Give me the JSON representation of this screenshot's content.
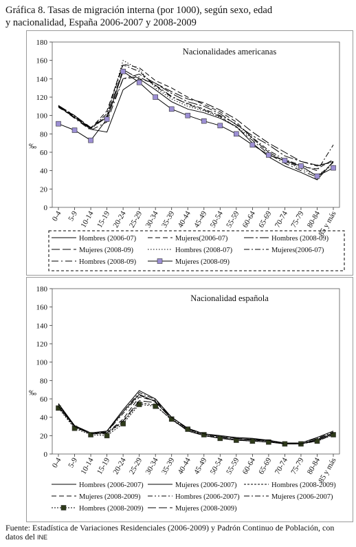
{
  "title_line1": "Gráfica 8. Tasas de migración interna (por 1000), según sexo, edad",
  "title_line2": "y nacionalidad, España 2006-2007 y 2008-2009",
  "source_text": "Fuente: Estadística de Variaciones Residenciales (2006-2009) y Padrón Continuo de Población, con datos del",
  "source_ine": "INE",
  "chart_data": [
    {
      "type": "line",
      "title": "Nacionalidades americanas",
      "ylabel": "‰",
      "ylim": [
        0,
        180
      ],
      "yticks": [
        0,
        20,
        40,
        60,
        80,
        100,
        120,
        140,
        160,
        180
      ],
      "grid": false,
      "legend_position": "bottom",
      "categories": [
        "0-4",
        "5-9",
        "10-14",
        "15-19",
        "20-24",
        "25-29",
        "30-34",
        "35-39",
        "40-44",
        "45-49",
        "50-54",
        "55-59",
        "60-64",
        "65-69",
        "70-74",
        "75-79",
        "80-84",
        "85 y más"
      ],
      "series": [
        {
          "name": "Hombres (2006-07)",
          "style": "solid",
          "values": [
            110,
            98,
            85,
            82,
            128,
            140,
            128,
            115,
            107,
            103,
            97,
            88,
            70,
            55,
            45,
            38,
            30,
            50
          ]
        },
        {
          "name": "Mujeres(2006-07)",
          "style": "dashed",
          "values": [
            109,
            98,
            86,
            105,
            156,
            152,
            138,
            130,
            120,
            112,
            104,
            93,
            75,
            60,
            50,
            44,
            42,
            52
          ]
        },
        {
          "name": "Hombres (2008-09)",
          "style": "dashdot-long",
          "values": [
            111,
            100,
            86,
            98,
            140,
            145,
            135,
            124,
            115,
            110,
            102,
            90,
            78,
            68,
            56,
            50,
            45,
            50
          ]
        },
        {
          "name": "Mujeres (2008-09)",
          "style": "longdash",
          "values": [
            110,
            100,
            87,
            99,
            150,
            140,
            135,
            126,
            118,
            114,
            106,
            96,
            82,
            70,
            60,
            50,
            46,
            49
          ]
        },
        {
          "name": "Hombres (2008-07)",
          "style": "dotted",
          "values": [
            111,
            98,
            85,
            100,
            160,
            150,
            130,
            118,
            110,
            105,
            98,
            88,
            75,
            60,
            50,
            42,
            35,
            46
          ]
        },
        {
          "name": "Mujeres(2006-07)",
          "style": "dashdot",
          "values": [
            110,
            99,
            86,
            102,
            155,
            148,
            132,
            120,
            113,
            107,
            100,
            91,
            76,
            62,
            52,
            46,
            40,
            68
          ]
        },
        {
          "name": "Hombres (2008-09)",
          "style": "dashdot-long2",
          "values": [
            110,
            97,
            84,
            93,
            140,
            142,
            133,
            121,
            112,
            106,
            99,
            87,
            73,
            58,
            48,
            40,
            33,
            49
          ]
        },
        {
          "name": "Mujeres (2008-09)",
          "style": "solid-markers",
          "marker": "square",
          "marker_color": "#9c8fd4",
          "values": [
            91,
            84,
            73,
            96,
            148,
            136,
            120,
            107,
            100,
            94,
            89,
            80,
            68,
            57,
            51,
            45,
            34,
            43
          ]
        }
      ]
    },
    {
      "type": "line",
      "title": "Nacionalidad española",
      "ylabel": "‰",
      "ylim": [
        0,
        180
      ],
      "yticks": [
        0,
        20,
        40,
        60,
        80,
        100,
        120,
        140,
        160,
        180
      ],
      "grid": false,
      "legend_position": "bottom",
      "categories": [
        "0-4",
        "5-9",
        "10-14",
        "15-19",
        "20-24",
        "25-29",
        "30-34",
        "35-39",
        "40-44",
        "45-49",
        "50-54",
        "55-59",
        "60-64",
        "65-69",
        "70-74",
        "75-79",
        "80-84",
        "85 y más"
      ],
      "series": [
        {
          "name": "Hombres (2006-2007)",
          "style": "solid",
          "values": [
            54,
            30,
            22,
            25,
            46,
            65,
            57,
            38,
            25,
            20,
            17,
            15,
            14,
            13,
            11,
            11,
            15,
            22
          ]
        },
        {
          "name": "Mujeres (2006-2007)",
          "style": "solid",
          "values": [
            55,
            31,
            23,
            25,
            48,
            69,
            60,
            40,
            28,
            22,
            20,
            18,
            17,
            15,
            12,
            12,
            18,
            25
          ]
        },
        {
          "name": "Hombres (2008-2009)",
          "style": "shortdash",
          "values": [
            51,
            29,
            22,
            22,
            35,
            56,
            53,
            37,
            26,
            20,
            17,
            16,
            15,
            14,
            11,
            11,
            14,
            21
          ]
        },
        {
          "name": "Mujeres (2008-2009)",
          "style": "dashed",
          "values": [
            52,
            30,
            22,
            23,
            38,
            62,
            58,
            40,
            28,
            22,
            19,
            17,
            16,
            15,
            11,
            11,
            16,
            23
          ]
        },
        {
          "name": "Hombres (2006-2007)",
          "style": "dashdotdot",
          "values": [
            53,
            30,
            22,
            24,
            44,
            64,
            57,
            38,
            26,
            21,
            18,
            16,
            15,
            14,
            11,
            11,
            15,
            22
          ]
        },
        {
          "name": "Mujeres (2006-2007)",
          "style": "dashdot",
          "values": [
            54,
            31,
            22,
            24,
            46,
            67,
            59,
            40,
            27,
            22,
            19,
            17,
            16,
            14,
            11,
            12,
            17,
            24
          ]
        },
        {
          "name": "Hombres (2008-2009)",
          "style": "dotted-markers",
          "marker": "square",
          "marker_color": "#2e3a1a",
          "values": [
            50,
            28,
            21,
            20,
            33,
            54,
            52,
            38,
            27,
            21,
            17,
            15,
            14,
            13,
            11,
            11,
            14,
            21
          ]
        },
        {
          "name": "Mujeres (2008-2009)",
          "style": "longdash",
          "values": [
            52,
            30,
            22,
            23,
            36,
            58,
            56,
            40,
            28,
            22,
            19,
            17,
            16,
            15,
            11,
            11,
            16,
            23
          ]
        }
      ]
    }
  ]
}
